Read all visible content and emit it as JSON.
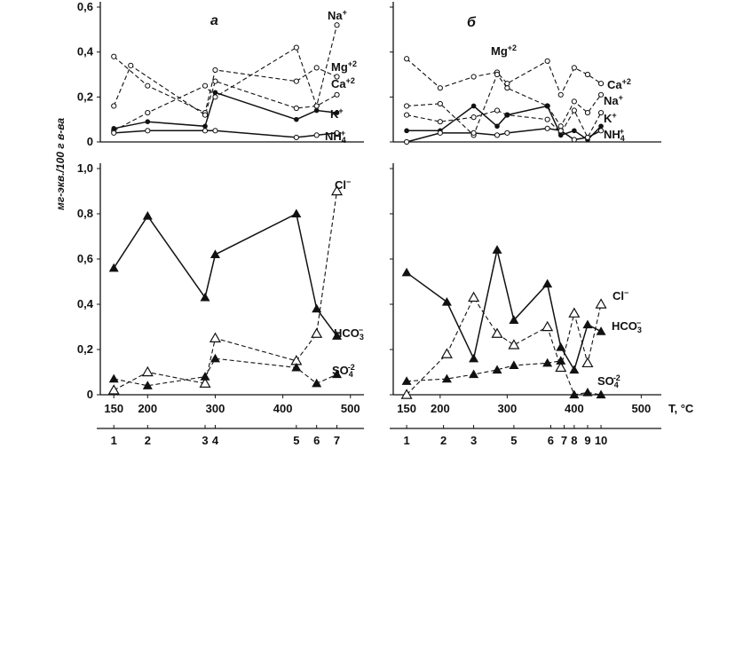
{
  "chart_data": [
    {
      "panel": "a",
      "part": "top",
      "type": "line",
      "ylim": [
        0,
        0.6
      ],
      "xlim": [
        130,
        520
      ],
      "yticks": [
        "0",
        "0,2",
        "0,4",
        "0,6"
      ],
      "series": [
        {
          "name": "Na+",
          "style": "dash",
          "marker": "open-circle",
          "points": [
            [
              150,
              0.05
            ],
            [
              200,
              0.13
            ],
            [
              285,
              0.25
            ],
            [
              300,
              0.2
            ],
            [
              420,
              0.42
            ],
            [
              450,
              0.16
            ],
            [
              480,
              0.52
            ]
          ]
        },
        {
          "name": "Mg+2",
          "style": "dash",
          "marker": "open-circle",
          "points": [
            [
              150,
              0.38
            ],
            [
              200,
              0.25
            ],
            [
              285,
              0.13
            ],
            [
              300,
              0.32
            ],
            [
              420,
              0.27
            ],
            [
              450,
              0.33
            ],
            [
              480,
              0.29
            ]
          ]
        },
        {
          "name": "Ca+2",
          "style": "dash",
          "marker": "open-circle",
          "points": [
            [
              150,
              0.16
            ],
            [
              175,
              0.34
            ],
            [
              285,
              0.12
            ],
            [
              300,
              0.27
            ],
            [
              420,
              0.15
            ],
            [
              450,
              0.16
            ],
            [
              480,
              0.21
            ]
          ]
        },
        {
          "name": "K+",
          "style": "solid",
          "marker": "filled-circle",
          "points": [
            [
              150,
              0.06
            ],
            [
              200,
              0.09
            ],
            [
              285,
              0.07
            ],
            [
              300,
              0.22
            ],
            [
              420,
              0.1
            ],
            [
              450,
              0.14
            ],
            [
              480,
              0.13
            ]
          ]
        },
        {
          "name": "NH4+",
          "style": "solid",
          "marker": "open-circle",
          "points": [
            [
              150,
              0.04
            ],
            [
              200,
              0.05
            ],
            [
              285,
              0.05
            ],
            [
              300,
              0.05
            ],
            [
              420,
              0.02
            ],
            [
              450,
              0.03
            ],
            [
              480,
              0.04
            ]
          ]
        }
      ]
    },
    {
      "panel": "a",
      "part": "bottom",
      "type": "line",
      "ylim": [
        0,
        1.0
      ],
      "xlim": [
        130,
        520
      ],
      "yticks": [
        "0",
        "0,2",
        "0,4",
        "0,6",
        "0,8",
        "1,0"
      ],
      "xticks": [
        "150",
        "200",
        "300",
        "400",
        "500"
      ],
      "sample_labels": [
        "1",
        "2",
        "3",
        "4",
        "5",
        "6",
        "7"
      ],
      "sample_x": [
        150,
        200,
        285,
        300,
        420,
        450,
        480
      ],
      "series": [
        {
          "name": "HCO3-",
          "style": "solid",
          "marker": "filled-triangle",
          "points": [
            [
              150,
              0.56
            ],
            [
              200,
              0.79
            ],
            [
              285,
              0.43
            ],
            [
              300,
              0.62
            ],
            [
              420,
              0.8
            ],
            [
              450,
              0.38
            ],
            [
              480,
              0.26
            ]
          ]
        },
        {
          "name": "Cl-",
          "style": "dash",
          "marker": "open-triangle",
          "points": [
            [
              150,
              0.02
            ],
            [
              200,
              0.1
            ],
            [
              285,
              0.05
            ],
            [
              300,
              0.25
            ],
            [
              420,
              0.15
            ],
            [
              450,
              0.27
            ],
            [
              480,
              0.9
            ]
          ]
        },
        {
          "name": "SO4-2",
          "style": "dash",
          "marker": "filled-triangle",
          "points": [
            [
              150,
              0.07
            ],
            [
              200,
              0.04
            ],
            [
              285,
              0.08
            ],
            [
              300,
              0.16
            ],
            [
              420,
              0.12
            ],
            [
              450,
              0.05
            ],
            [
              480,
              0.09
            ]
          ]
        }
      ]
    },
    {
      "panel": "б",
      "part": "top",
      "type": "line",
      "ylim": [
        0,
        0.6
      ],
      "xlim": [
        130,
        530
      ],
      "series": [
        {
          "name": "Mg+2",
          "style": "dash",
          "marker": "open-circle",
          "points": [
            [
              150,
              0.37
            ],
            [
              200,
              0.24
            ],
            [
              250,
              0.29
            ],
            [
              285,
              0.31
            ],
            [
              300,
              0.26
            ],
            [
              360,
              0.36
            ],
            [
              380,
              0.21
            ],
            [
              400,
              0.33
            ],
            [
              420,
              0.3
            ],
            [
              440,
              0.26
            ]
          ]
        },
        {
          "name": "Ca+2",
          "style": "dash",
          "marker": "open-circle",
          "points": [
            [
              150,
              0.16
            ],
            [
              200,
              0.17
            ],
            [
              250,
              0.03
            ],
            [
              285,
              0.3
            ],
            [
              300,
              0.24
            ],
            [
              360,
              0.16
            ],
            [
              380,
              0.07
            ],
            [
              400,
              0.18
            ],
            [
              420,
              0.13
            ],
            [
              440,
              0.21
            ]
          ]
        },
        {
          "name": "Na+",
          "style": "dash",
          "marker": "open-circle",
          "points": [
            [
              150,
              0.12
            ],
            [
              200,
              0.09
            ],
            [
              250,
              0.11
            ],
            [
              285,
              0.14
            ],
            [
              300,
              0.12
            ],
            [
              360,
              0.1
            ],
            [
              380,
              0.04
            ],
            [
              400,
              0.14
            ],
            [
              420,
              0.02
            ],
            [
              440,
              0.13
            ]
          ]
        },
        {
          "name": "K+",
          "style": "solid",
          "marker": "filled-circle",
          "points": [
            [
              150,
              0.05
            ],
            [
              200,
              0.05
            ],
            [
              250,
              0.16
            ],
            [
              285,
              0.07
            ],
            [
              300,
              0.12
            ],
            [
              360,
              0.16
            ],
            [
              380,
              0.03
            ],
            [
              400,
              0.05
            ],
            [
              420,
              0.01
            ],
            [
              440,
              0.07
            ]
          ]
        },
        {
          "name": "NH4+",
          "style": "solid",
          "marker": "open-circle",
          "points": [
            [
              150,
              0.0
            ],
            [
              200,
              0.04
            ],
            [
              250,
              0.04
            ],
            [
              285,
              0.03
            ],
            [
              300,
              0.04
            ],
            [
              360,
              0.06
            ],
            [
              380,
              0.05
            ],
            [
              400,
              0.01
            ],
            [
              420,
              0.02
            ],
            [
              440,
              0.05
            ]
          ]
        }
      ]
    },
    {
      "panel": "б",
      "part": "bottom",
      "type": "line",
      "ylim": [
        0,
        1.0
      ],
      "xlim": [
        130,
        530
      ],
      "xticks": [
        "150",
        "200",
        "300",
        "400",
        "500"
      ],
      "xlabel": "T, °C",
      "sample_labels": [
        "1",
        "2",
        "3",
        "5",
        "6",
        "7",
        "8",
        "9",
        "10"
      ],
      "sample_x": [
        150,
        205,
        250,
        310,
        365,
        385,
        400,
        420,
        440
      ],
      "series": [
        {
          "name": "HCO3-",
          "style": "solid",
          "marker": "filled-triangle",
          "points": [
            [
              150,
              0.54
            ],
            [
              210,
              0.41
            ],
            [
              250,
              0.16
            ],
            [
              285,
              0.64
            ],
            [
              310,
              0.33
            ],
            [
              360,
              0.49
            ],
            [
              380,
              0.21
            ],
            [
              400,
              0.11
            ],
            [
              420,
              0.31
            ],
            [
              440,
              0.28
            ]
          ]
        },
        {
          "name": "Cl-",
          "style": "dash",
          "marker": "open-triangle",
          "points": [
            [
              150,
              0.0
            ],
            [
              210,
              0.18
            ],
            [
              250,
              0.43
            ],
            [
              285,
              0.27
            ],
            [
              310,
              0.22
            ],
            [
              360,
              0.3
            ],
            [
              380,
              0.12
            ],
            [
              400,
              0.36
            ],
            [
              420,
              0.14
            ],
            [
              440,
              0.4
            ]
          ]
        },
        {
          "name": "SO4-2",
          "style": "dash",
          "marker": "filled-triangle",
          "points": [
            [
              150,
              0.06
            ],
            [
              210,
              0.07
            ],
            [
              250,
              0.09
            ],
            [
              285,
              0.11
            ],
            [
              310,
              0.13
            ],
            [
              360,
              0.14
            ],
            [
              380,
              0.15
            ],
            [
              400,
              0.0
            ],
            [
              420,
              0.01
            ],
            [
              440,
              0.0
            ]
          ]
        }
      ]
    }
  ],
  "labels": {
    "panel_a": "а",
    "panel_b": "б",
    "ylabel": "мг-экв./100 г в-ва",
    "xunit": "T, °C",
    "a_top_ions": [
      {
        "t": "Na",
        "sup": "+"
      },
      {
        "t": "Mg",
        "sup": "+2"
      },
      {
        "t": "Ca",
        "sup": "+2"
      },
      {
        "t": "K",
        "sup": "+"
      },
      {
        "t": "NH",
        "sub": "4",
        "sup": "+"
      }
    ],
    "b_top_ions": [
      {
        "t": "Mg",
        "sup": "+2"
      },
      {
        "t": "Ca",
        "sup": "+2"
      },
      {
        "t": "Na",
        "sup": "+"
      },
      {
        "t": "K",
        "sup": "+"
      },
      {
        "t": "NH",
        "sub": "4",
        "sup": "+"
      }
    ],
    "a_bot_ions": [
      {
        "t": "Cl",
        "sup": "−"
      },
      {
        "t": "HCO",
        "sub": "3",
        "sup": "−"
      },
      {
        "t": "SO",
        "sub": "4",
        "sup": "-2"
      }
    ],
    "b_bot_ions": [
      {
        "t": "Cl",
        "sup": "−"
      },
      {
        "t": "HCO",
        "sub": "3",
        "sup": "−"
      },
      {
        "t": "SO",
        "sub": "4",
        "sup": "-2"
      }
    ]
  }
}
